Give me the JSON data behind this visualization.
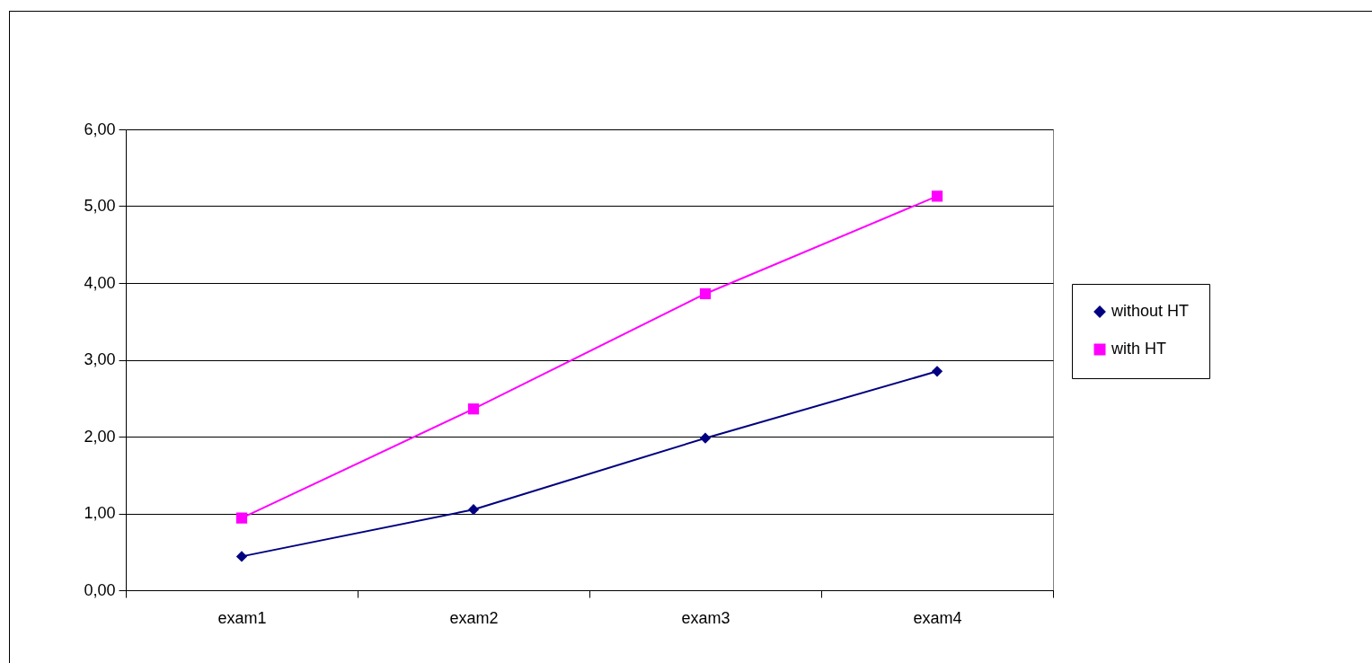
{
  "chart_data": {
    "type": "line",
    "categories": [
      "exam1",
      "exam2",
      "exam3",
      "exam4"
    ],
    "series": [
      {
        "name": "without HT",
        "color": "#000080",
        "marker": "diamond",
        "values": [
          0.44,
          1.05,
          1.98,
          2.85
        ]
      },
      {
        "name": "with HT",
        "color": "#ff00ff",
        "marker": "square",
        "values": [
          0.94,
          2.36,
          3.86,
          5.13
        ]
      }
    ],
    "ylim": [
      0,
      6
    ],
    "yticks": [
      {
        "value": 0,
        "label": "0,00"
      },
      {
        "value": 1,
        "label": "1,00"
      },
      {
        "value": 2,
        "label": "2,00"
      },
      {
        "value": 3,
        "label": "3,00"
      },
      {
        "value": 4,
        "label": "4,00"
      },
      {
        "value": 5,
        "label": "5,00"
      },
      {
        "value": 6,
        "label": "6,00"
      }
    ],
    "grid": "y",
    "legend": "right"
  }
}
